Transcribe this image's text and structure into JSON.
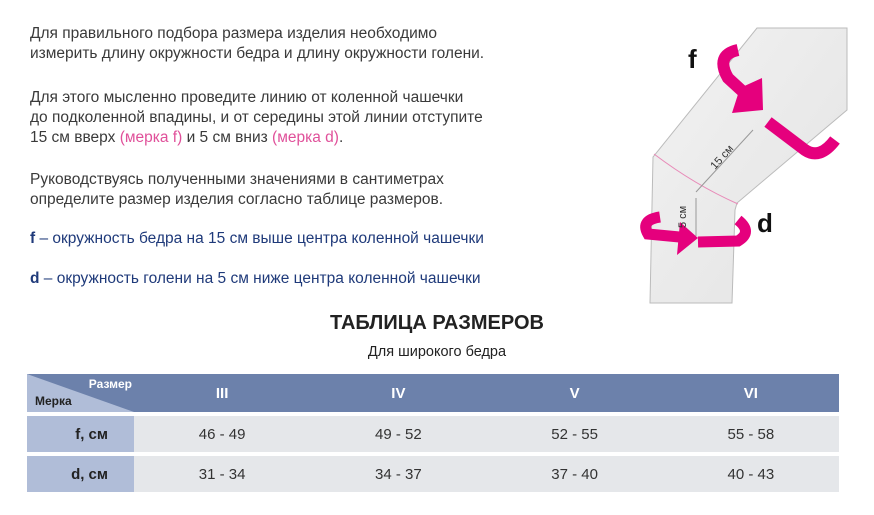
{
  "intro": {
    "p1": [
      "Для правильного подбора размера изделия необходимо",
      "измерить длину окружности бедра и длину окружности голени."
    ],
    "p2_lines": [
      "Для этого мысленно проведите линию от коленной чашечки",
      "до подколенной впадины, и от середины этой линии отступите"
    ],
    "p2_last": {
      "a": "15 см вверх ",
      "b": "(мерка f)",
      "c": " и 5 см вниз ",
      "d": "(мерка d)",
      "e": "."
    },
    "p3": [
      "Руководствуясь полученными значениями в сантиметрах",
      "определите размер изделия согласно таблице размеров."
    ]
  },
  "definitions": [
    {
      "key": "f",
      "text": " – окружность бедра на 15 см выше центра коленной чашечки"
    },
    {
      "key": "d",
      "text": " – окружность голени на 5 см ниже центра коленной чашечки"
    }
  ],
  "diagram": {
    "f": "f",
    "d": "d",
    "dist_upper": "15 см",
    "dist_lower": "5 см",
    "accent": "#e5007d"
  },
  "table": {
    "title": "ТАБЛИЦА РАЗМЕРОВ",
    "subtitle": "Для широкого бедра",
    "corner_top": "Размер",
    "corner_bottom": "Мерка",
    "sizes": [
      "III",
      "IV",
      "V",
      "VI"
    ],
    "rows": [
      {
        "label": "f, см",
        "values": [
          "46 - 49",
          "49 - 52",
          "52 - 55",
          "55 - 58"
        ]
      },
      {
        "label": "d, см",
        "values": [
          "31 - 34",
          "34 - 37",
          "37 - 40",
          "40 - 43"
        ]
      }
    ]
  }
}
